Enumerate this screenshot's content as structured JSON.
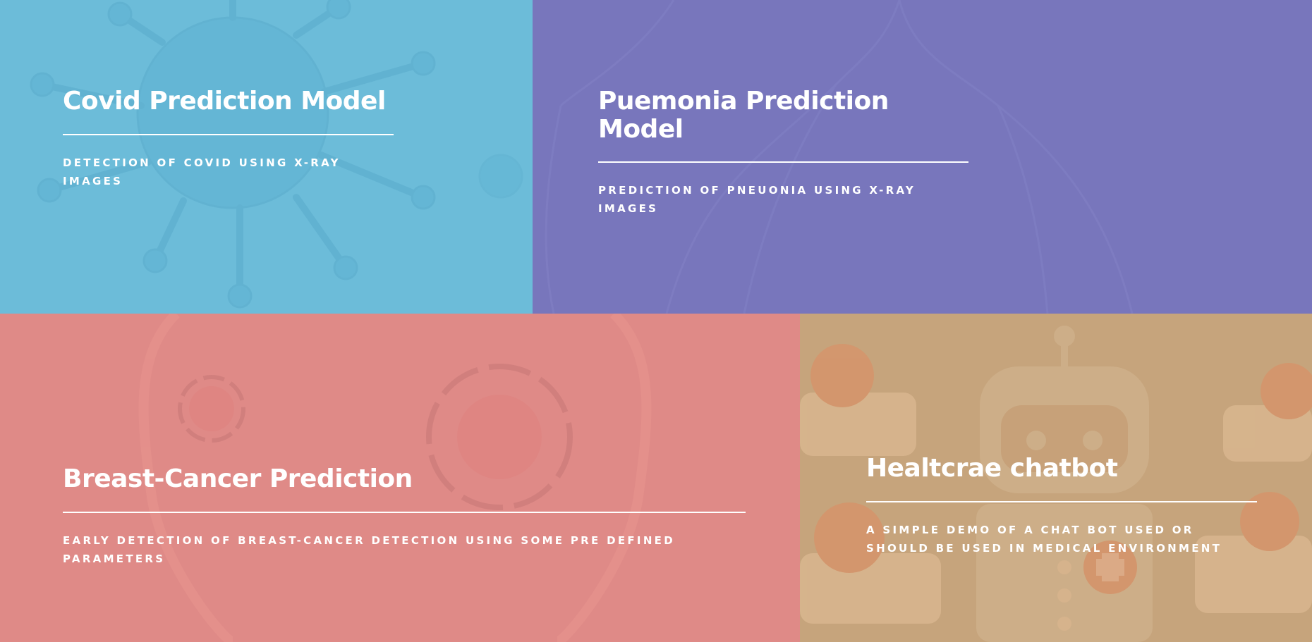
{
  "tiles": [
    {
      "title": "Covid Prediction Model",
      "subtitle": "Detection of covid using x-ray images",
      "color": "#6cbcd9"
    },
    {
      "title": "Puemonia Prediction Model",
      "subtitle": "Prediction of pneuonia using x-ray images",
      "color": "#7876bc"
    },
    {
      "title": "Breast-Cancer Prediction",
      "subtitle": "Early detection of breast-cancer detection using some pre defined parameters",
      "color": "#df8a87"
    },
    {
      "title": "Healtcrae chatbot",
      "subtitle": "A simple demo of a chat bot used or should be used in medical environment",
      "color": "#c6a47c"
    }
  ],
  "icons": [
    "virus-icon",
    "lungs-icon",
    "breast-scan-icon",
    "robot-icon",
    "clipboard-icon",
    "heartbeat-icon",
    "medical-cross-icon",
    "calendar-icon",
    "scale-icon",
    "chat-bubble-icon"
  ]
}
